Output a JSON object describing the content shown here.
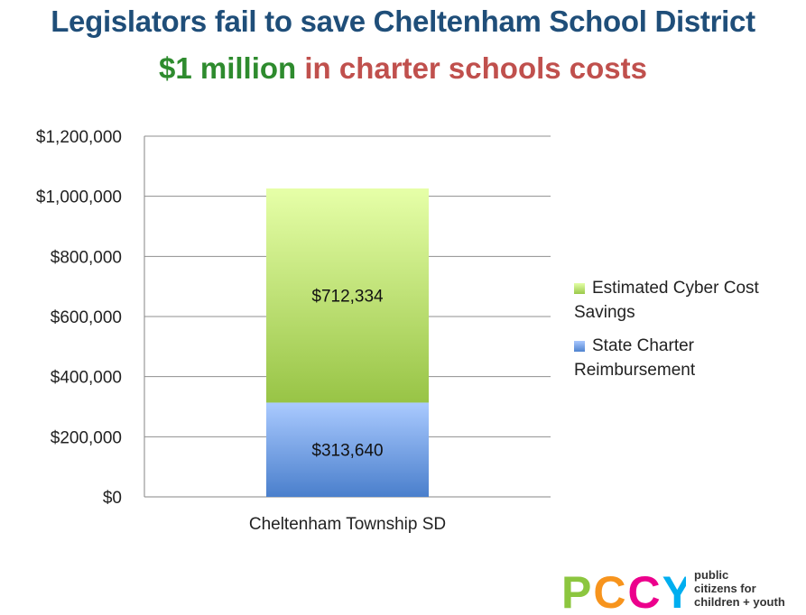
{
  "title_line1": "Legislators fail to save Cheltenham School District",
  "subtitle_green": "$1 million",
  "subtitle_red": "in charter schools costs",
  "colors": {
    "title": "#1f4e79",
    "subtitle_green": "#2e8b2e",
    "subtitle_red": "#c0504d",
    "series_cyber": "#9bc94a",
    "series_state": "#4f83cf"
  },
  "logo": {
    "letters": "PCCY",
    "text_lines": [
      "public",
      "citizens for",
      "children + youth"
    ]
  },
  "chart_data": {
    "type": "bar",
    "stacked": true,
    "categories": [
      "Cheltenham Township SD"
    ],
    "series": [
      {
        "name": "State Charter Reimbursement",
        "values": [
          313640
        ],
        "label": "$313,640"
      },
      {
        "name": "Estimated Cyber Cost Savings",
        "values": [
          712334
        ],
        "label": "$712,334"
      }
    ],
    "ylim": [
      0,
      1200000
    ],
    "yticks": [
      "$0",
      "$200,000",
      "$400,000",
      "$600,000",
      "$800,000",
      "$1,000,000",
      "$1,200,000"
    ],
    "grid": true,
    "legend_position": "right",
    "legend": [
      {
        "line1": "Estimated Cyber Cost",
        "line2": "Savings"
      },
      {
        "line1": "State Charter",
        "line2": "Reimbursement"
      }
    ]
  }
}
